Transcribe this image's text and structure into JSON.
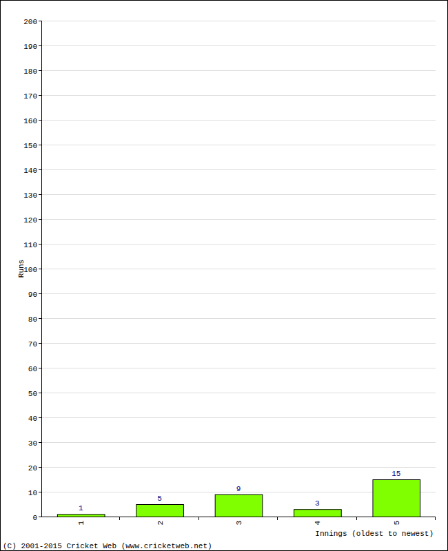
{
  "chart_data": {
    "type": "bar",
    "categories": [
      "1",
      "2",
      "3",
      "4",
      "5"
    ],
    "values": [
      1,
      5,
      9,
      3,
      15
    ],
    "color": "#80ff00",
    "ylim": [
      0,
      200
    ],
    "yticks": [
      0,
      10,
      20,
      30,
      40,
      50,
      60,
      70,
      80,
      90,
      100,
      110,
      120,
      130,
      140,
      150,
      160,
      170,
      180,
      190,
      200
    ],
    "grid": true,
    "data_labels": true,
    "x_label": "Innings (oldest to newest)",
    "y_label": "Runs",
    "annotations": [
      "(C) 2001-2015 Cricket Web (www.cricketweb.net)"
    ]
  }
}
